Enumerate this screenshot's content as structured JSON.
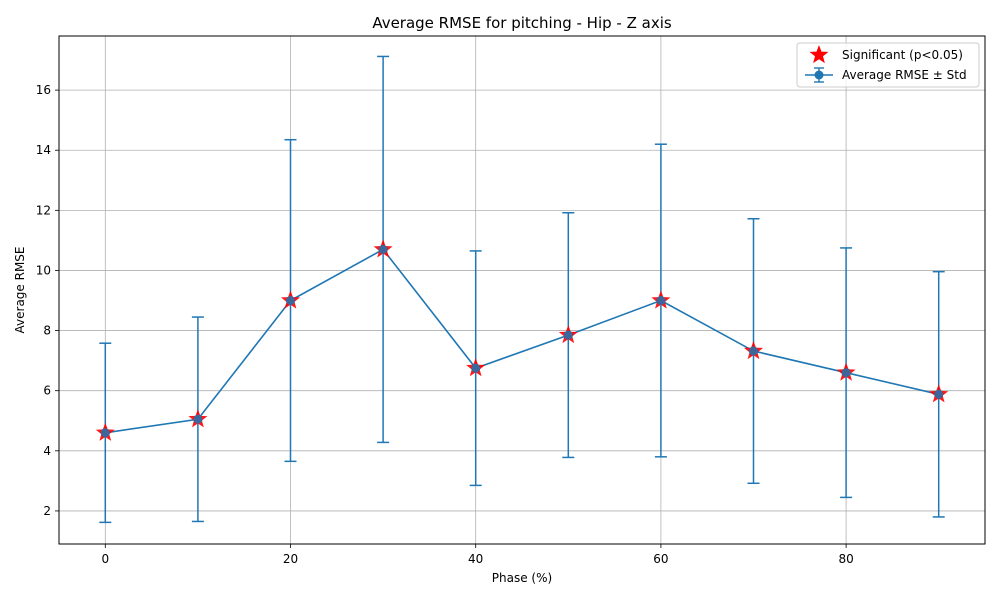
{
  "chart_data": {
    "type": "line",
    "title": "Average RMSE for pitching - Hip - Z axis",
    "xlabel": "Phase (%)",
    "ylabel": "Average RMSE",
    "xlim": [
      -5,
      95
    ],
    "ylim": [
      0.9,
      17.8
    ],
    "xticks": [
      0,
      20,
      40,
      60,
      80
    ],
    "yticks": [
      2,
      4,
      6,
      8,
      10,
      12,
      14,
      16
    ],
    "grid": true,
    "legend_position": "top-right",
    "series": [
      {
        "name": "Average RMSE ± Std",
        "color": "#1f77b4",
        "x": [
          0,
          10,
          20,
          30,
          40,
          50,
          60,
          70,
          80,
          90
        ],
        "y": [
          4.6,
          5.05,
          9.0,
          10.7,
          6.75,
          7.85,
          9.0,
          7.32,
          6.6,
          5.88
        ],
        "std": [
          2.98,
          3.4,
          5.35,
          6.42,
          3.9,
          4.07,
          5.2,
          4.4,
          4.15,
          4.08
        ]
      }
    ],
    "significant": {
      "name": "Significant (p<0.05)",
      "color": "#ff0000",
      "x": [
        0,
        10,
        20,
        30,
        40,
        50,
        60,
        70,
        80,
        90
      ]
    }
  }
}
